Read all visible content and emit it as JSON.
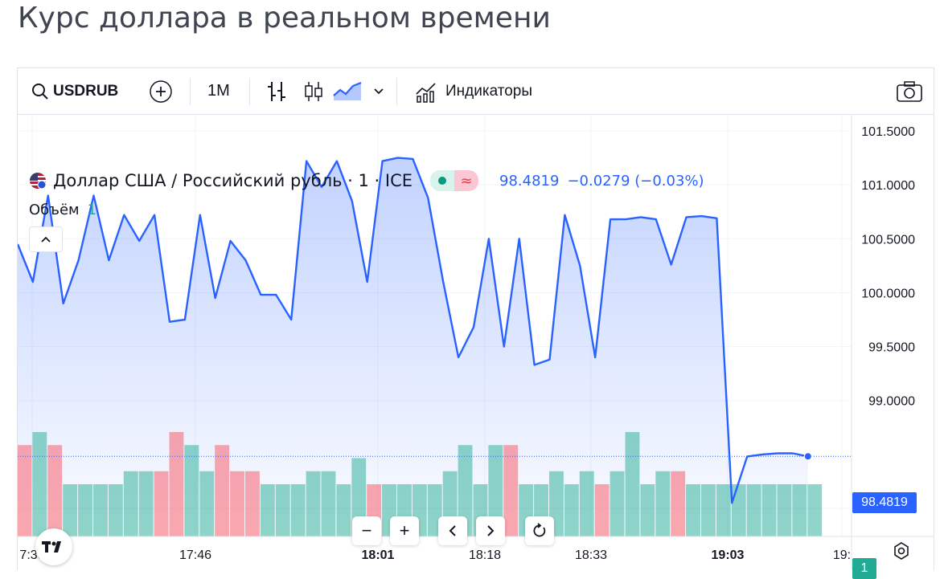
{
  "page": {
    "title": "Курс доллара в реальном времени"
  },
  "toolbar": {
    "symbol": "USDRUB",
    "interval": "1M",
    "indicators_label": "Индикаторы",
    "icons": [
      "search-icon",
      "plus-circle-icon",
      "bar-chart-icon",
      "candles-icon",
      "area-chart-icon",
      "chevron-down-icon",
      "indicators-icon",
      "camera-icon"
    ]
  },
  "legend": {
    "name": "Доллар США / Российский рубль · 1 · ICE",
    "last": "98.4819",
    "change": "−0.0279 (−0.03%)",
    "volume_label": "Объём",
    "volume_value": "1"
  },
  "price_tag": "98.4819",
  "volume_tag": "1",
  "colors": {
    "line": "#2962ff",
    "up_volume": "#22ab94",
    "down_volume": "#f7525f"
  },
  "chart_data": {
    "type": "area",
    "y_ticks": [
      "101.5000",
      "101.0000",
      "100.5000",
      "100.0000",
      "99.5000",
      "99.0000",
      "98.0000"
    ],
    "ylim": [
      97.95,
      101.55
    ],
    "x_ticks": [
      "7:30",
      "17:46",
      "18:01",
      "18:18",
      "18:33",
      "19:03",
      "19:"
    ],
    "bold_x_ticks": [
      "18:01",
      "19:03"
    ],
    "grid": true,
    "series": [
      {
        "values": [
          100.45,
          100.1,
          100.9,
          99.9,
          100.3,
          100.9,
          100.3,
          100.72,
          100.48,
          100.72,
          99.73,
          99.75,
          100.72,
          99.95,
          100.48,
          100.3,
          99.98,
          99.98,
          99.75,
          101.22,
          100.98,
          101.22,
          100.85,
          100.1,
          101.22,
          101.25,
          101.24,
          100.88,
          100.1,
          99.4,
          99.68,
          100.5,
          99.5,
          100.5,
          99.33,
          99.38,
          100.72,
          100.25,
          99.4,
          100.68,
          100.68,
          100.7,
          100.68,
          100.26,
          100.7,
          100.71,
          100.69,
          98.05,
          98.48,
          98.5,
          98.51,
          98.51,
          98.4819
        ]
      }
    ],
    "volume": {
      "values": [
        7,
        8,
        7,
        4,
        4,
        4,
        4,
        5,
        5,
        5,
        8,
        7,
        5,
        7,
        5,
        5,
        4,
        4,
        4,
        5,
        5,
        4,
        6,
        4,
        4,
        4,
        4,
        4,
        5,
        7,
        4,
        7,
        7,
        4,
        4,
        5,
        4,
        5,
        4,
        5,
        8,
        4,
        5,
        5,
        4,
        4,
        4,
        4,
        4,
        4,
        4,
        4,
        4
      ],
      "direction": [
        "down",
        "up",
        "down",
        "up",
        "up",
        "up",
        "up",
        "up",
        "up",
        "down",
        "down",
        "up",
        "up",
        "down",
        "down",
        "down",
        "up",
        "up",
        "up",
        "up",
        "up",
        "up",
        "up",
        "down",
        "up",
        "up",
        "up",
        "up",
        "up",
        "up",
        "up",
        "up",
        "down",
        "up",
        "up",
        "up",
        "up",
        "up",
        "down",
        "up",
        "up",
        "up",
        "up",
        "down",
        "up",
        "up",
        "up",
        "up",
        "up",
        "up",
        "up",
        "up",
        "up"
      ]
    }
  }
}
